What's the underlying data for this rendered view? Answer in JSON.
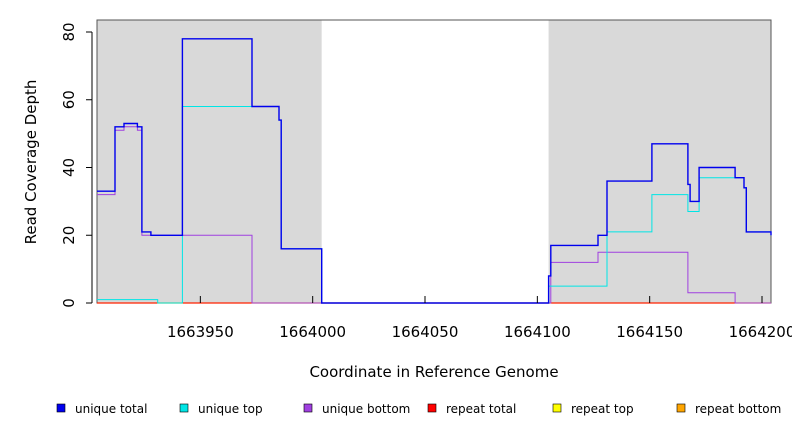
{
  "chart_data": {
    "type": "line",
    "title": "",
    "xlabel": "Coordinate in Reference Genome",
    "ylabel": "Read Coverage Depth",
    "xlim": [
      1663904,
      1664204
    ],
    "ylim": [
      0,
      80
    ],
    "x_ticks": [
      1663950,
      1664000,
      1664050,
      1664100,
      1664150,
      1664200
    ],
    "x_tick_labels": [
      "1663950",
      "1664000",
      "1664050",
      "1664100",
      "1664150",
      "1664200"
    ],
    "y_ticks": [
      0,
      20,
      40,
      60,
      80
    ],
    "y_tick_labels": [
      "0",
      "20",
      "40",
      "60",
      "80"
    ],
    "shaded_regions": [
      [
        1663904,
        1664004
      ],
      [
        1664105,
        1664204
      ]
    ],
    "shade_color": "#d9d9d9",
    "grid": false,
    "legend_position": "bottom",
    "series": [
      {
        "name": "unique total",
        "color": "#0000ee",
        "x": [
          1663904,
          1663912,
          1663916,
          1663922,
          1663924,
          1663928,
          1663931,
          1663942,
          1663973,
          1663985,
          1663986,
          1664004,
          1664105,
          1664106,
          1664127,
          1664131,
          1664151,
          1664167,
          1664168,
          1664172,
          1664188,
          1664192,
          1664193,
          1664204
        ],
        "y": [
          33,
          52,
          53,
          52,
          21,
          20,
          20,
          78,
          58,
          54,
          16,
          0,
          8,
          17,
          20,
          36,
          47,
          35,
          30,
          40,
          37,
          34,
          21,
          20
        ]
      },
      {
        "name": "unique top",
        "color": "#00e5e5",
        "x": [
          1663904,
          1663931,
          1663942,
          1663985,
          1663986,
          1664004,
          1664105,
          1664106,
          1664131,
          1664151,
          1664167,
          1664172,
          1664188,
          1664192,
          1664193,
          1664204
        ],
        "y": [
          1,
          0,
          58,
          54,
          16,
          0,
          5,
          5,
          21,
          32,
          27,
          37,
          37,
          34,
          21,
          20
        ]
      },
      {
        "name": "unique bottom",
        "color": "#a040e0",
        "x": [
          1663904,
          1663912,
          1663916,
          1663922,
          1663924,
          1663942,
          1663973,
          1664004,
          1664105,
          1664106,
          1664127,
          1664131,
          1664151,
          1664167,
          1664172,
          1664188,
          1664192,
          1664204
        ],
        "y": [
          32,
          51,
          52,
          51,
          20,
          20,
          0,
          0,
          0,
          12,
          15,
          15,
          15,
          3,
          3,
          0,
          0,
          0
        ]
      },
      {
        "name": "repeat total",
        "color": "#ff0000",
        "x": [
          1663904,
          1664204
        ],
        "y": [
          0,
          0
        ]
      },
      {
        "name": "repeat top",
        "color": "#ffff00",
        "x": [
          1663904,
          1664204
        ],
        "y": [
          0,
          0
        ]
      },
      {
        "name": "repeat bottom",
        "color": "#ffa500",
        "x": [
          1663904,
          1664204
        ],
        "y": [
          0,
          0
        ]
      }
    ]
  }
}
